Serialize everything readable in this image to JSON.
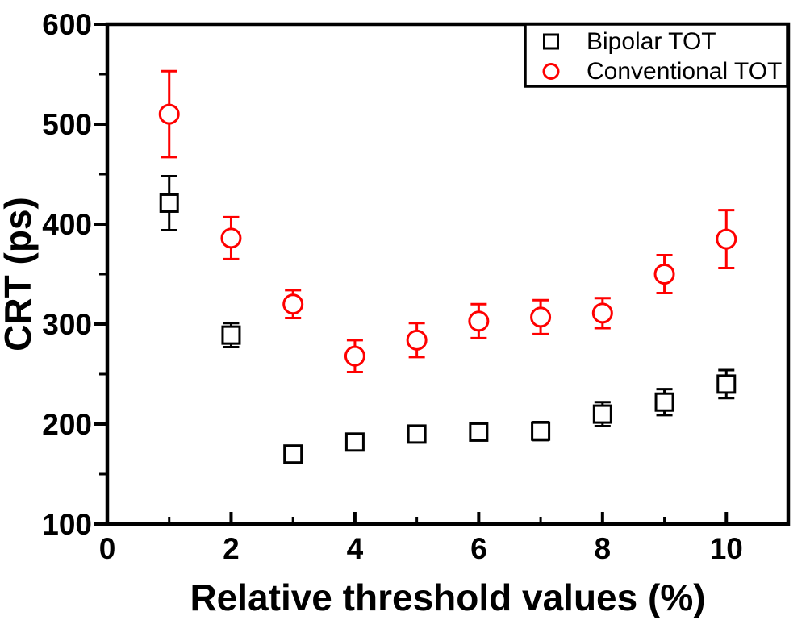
{
  "chart_data": {
    "type": "scatter",
    "title": "",
    "xlabel": "Relative threshold values (%)",
    "ylabel": "CRT (ps)",
    "xlim": [
      0,
      11
    ],
    "ylim": [
      100,
      600
    ],
    "x_major_ticks": [
      0,
      2,
      4,
      6,
      8,
      10
    ],
    "x_minor_ticks": [
      1,
      3,
      5,
      7,
      9
    ],
    "y_major_ticks": [
      100,
      200,
      300,
      400,
      500,
      600
    ],
    "y_minor_ticks": [
      150,
      250,
      350,
      450,
      550
    ],
    "grid": false,
    "legend_position": "top-right",
    "x": [
      1,
      2,
      3,
      4,
      5,
      6,
      7,
      8,
      9,
      10
    ],
    "series": [
      {
        "name": "Bipolar TOT",
        "marker": "square",
        "color": "#000000",
        "values": [
          421,
          289,
          170,
          182,
          190,
          192,
          193,
          210,
          222,
          240
        ],
        "errors": [
          27,
          12,
          8,
          8,
          7,
          8,
          9,
          12,
          13,
          14
        ]
      },
      {
        "name": "Conventional TOT",
        "marker": "circle",
        "color": "#ff0000",
        "values": [
          510,
          386,
          320,
          268,
          284,
          303,
          307,
          311,
          350,
          385
        ],
        "errors": [
          43,
          21,
          14,
          16,
          17,
          17,
          17,
          15,
          19,
          29
        ]
      }
    ],
    "colors": {
      "foreground": "#000000",
      "background": "#ffffff",
      "accent": "#ff0000"
    }
  }
}
